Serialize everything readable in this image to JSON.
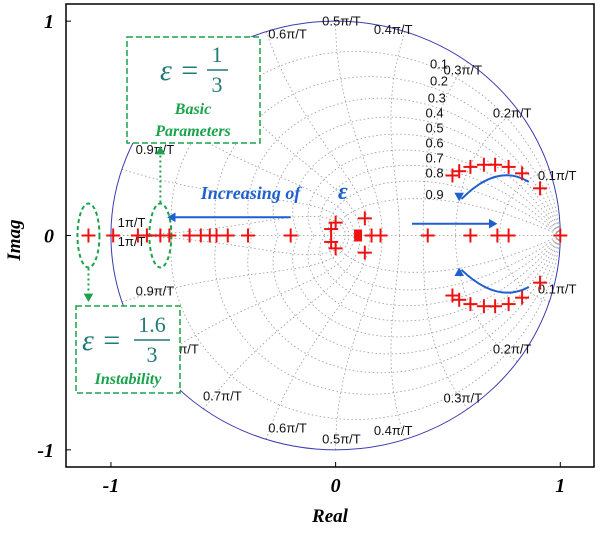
{
  "chart_data": {
    "type": "scatter",
    "xlabel": "Real",
    "ylabel": "Imag",
    "xlim": [
      -1.2,
      1.15
    ],
    "ylim": [
      -1.08,
      1.08
    ],
    "x_ticks": [
      {
        "v": -1,
        "label": "-1"
      },
      {
        "v": 0,
        "label": "0"
      },
      {
        "v": 1,
        "label": "1"
      }
    ],
    "y_ticks": [
      {
        "v": 1,
        "label": "1"
      },
      {
        "v": 0,
        "label": "0"
      },
      {
        "v": -1,
        "label": "-1"
      }
    ],
    "grid": {
      "unit_circle": true,
      "zeta_levels": [
        0.1,
        0.2,
        0.3,
        0.4,
        0.5,
        0.6,
        0.7,
        0.8,
        0.9
      ],
      "wn_levels": [
        0.1,
        0.2,
        0.3,
        0.4,
        0.5,
        0.6,
        0.7,
        0.8,
        0.9,
        1.0
      ]
    },
    "zeta_labels": [
      {
        "text": "0.1",
        "x": 0.42,
        "y": 0.78
      },
      {
        "text": "0.2",
        "x": 0.42,
        "y": 0.7
      },
      {
        "text": "0.3",
        "x": 0.41,
        "y": 0.62
      },
      {
        "text": "0.4",
        "x": 0.4,
        "y": 0.55
      },
      {
        "text": "0.5",
        "x": 0.4,
        "y": 0.48
      },
      {
        "text": "0.6",
        "x": 0.4,
        "y": 0.41
      },
      {
        "text": "0.7",
        "x": 0.4,
        "y": 0.34
      },
      {
        "text": "0.8",
        "x": 0.4,
        "y": 0.27
      },
      {
        "text": "0.9",
        "x": 0.4,
        "y": 0.17
      }
    ],
    "wn_labels": [
      {
        "text": "0.1π/T",
        "x": 0.9,
        "y": 0.26
      },
      {
        "text": "0.2π/T",
        "x": 0.7,
        "y": 0.55
      },
      {
        "text": "0.3π/T",
        "x": 0.48,
        "y": 0.75
      },
      {
        "text": "0.4π/T",
        "x": 0.17,
        "y": 0.94
      },
      {
        "text": "0.5π/T",
        "x": -0.06,
        "y": 0.98
      },
      {
        "text": "0.6π/T",
        "x": -0.3,
        "y": 0.92
      },
      {
        "text": "0.9π/T",
        "x": -0.89,
        "y": 0.38
      },
      {
        "text": "1π/T",
        "x": -0.97,
        "y": 0.04
      },
      {
        "text": "1π/T",
        "x": -0.97,
        "y": -0.05
      },
      {
        "text": "0.9π/T",
        "x": -0.89,
        "y": -0.28
      },
      {
        "text": "0.1π/T",
        "x": 0.9,
        "y": -0.27
      },
      {
        "text": "0.2π/T",
        "x": 0.7,
        "y": -0.55
      },
      {
        "text": "0.3π/T",
        "x": 0.48,
        "y": -0.78
      },
      {
        "text": "0.4π/T",
        "x": 0.17,
        "y": -0.93
      },
      {
        "text": "0.5π/T",
        "x": -0.06,
        "y": -0.97
      },
      {
        "text": "0.6π/T",
        "x": -0.3,
        "y": -0.92
      },
      {
        "text": "0.7π/T",
        "x": -0.59,
        "y": -0.77
      },
      {
        "text": "π/T",
        "x": -0.7,
        "y": -0.55
      }
    ],
    "series": [
      {
        "color": "#ee1111",
        "points": [
          [
            -1.1,
            0
          ],
          [
            -0.99,
            0
          ],
          [
            -0.88,
            0
          ],
          [
            -0.84,
            0
          ],
          [
            -0.78,
            0
          ],
          [
            -0.74,
            0
          ],
          [
            -0.65,
            0
          ],
          [
            -0.6,
            0
          ],
          [
            -0.56,
            0
          ],
          [
            -0.53,
            0
          ],
          [
            -0.48,
            0
          ],
          [
            -0.39,
            0
          ],
          [
            -0.2,
            0
          ],
          [
            -0.02,
            0.03
          ],
          [
            -0.02,
            -0.03
          ],
          [
            0.0,
            0.06
          ],
          [
            0.0,
            -0.06
          ],
          [
            0.13,
            0.08
          ],
          [
            0.13,
            -0.08
          ],
          [
            0.16,
            0
          ],
          [
            0.2,
            0
          ],
          [
            0.41,
            0
          ],
          [
            0.6,
            0
          ],
          [
            0.72,
            0
          ],
          [
            0.77,
            0
          ],
          [
            1.0,
            0
          ],
          [
            0.52,
            0.28
          ],
          [
            0.55,
            0.3
          ],
          [
            0.6,
            0.32
          ],
          [
            0.66,
            0.33
          ],
          [
            0.71,
            0.33
          ],
          [
            0.77,
            0.32
          ],
          [
            0.83,
            0.29
          ],
          [
            0.91,
            0.22
          ],
          [
            0.52,
            -0.28
          ],
          [
            0.55,
            -0.3
          ],
          [
            0.6,
            -0.32
          ],
          [
            0.66,
            -0.33
          ],
          [
            0.71,
            -0.33
          ],
          [
            0.77,
            -0.32
          ],
          [
            0.83,
            -0.29
          ],
          [
            0.91,
            -0.22
          ]
        ]
      }
    ],
    "highlight_point": [
      0.1,
      0
    ],
    "annotations": {
      "increasing": "Increasing of",
      "epsilon": "ε",
      "box_top": {
        "eq_lhs": "ε =",
        "numerator": "1",
        "denominator": "3",
        "line1": "Basic",
        "line2": "Parameters"
      },
      "box_bottom": {
        "eq_lhs": "ε =",
        "numerator": "1.6",
        "denominator": "3",
        "line1": "Instability"
      }
    },
    "colors": {
      "marker": "#ee1111",
      "unit_circle": "#3b3bb0",
      "grid": "#999999",
      "blue_annotation": "#1f5fcf",
      "green_annotation": "#19a34a"
    }
  }
}
